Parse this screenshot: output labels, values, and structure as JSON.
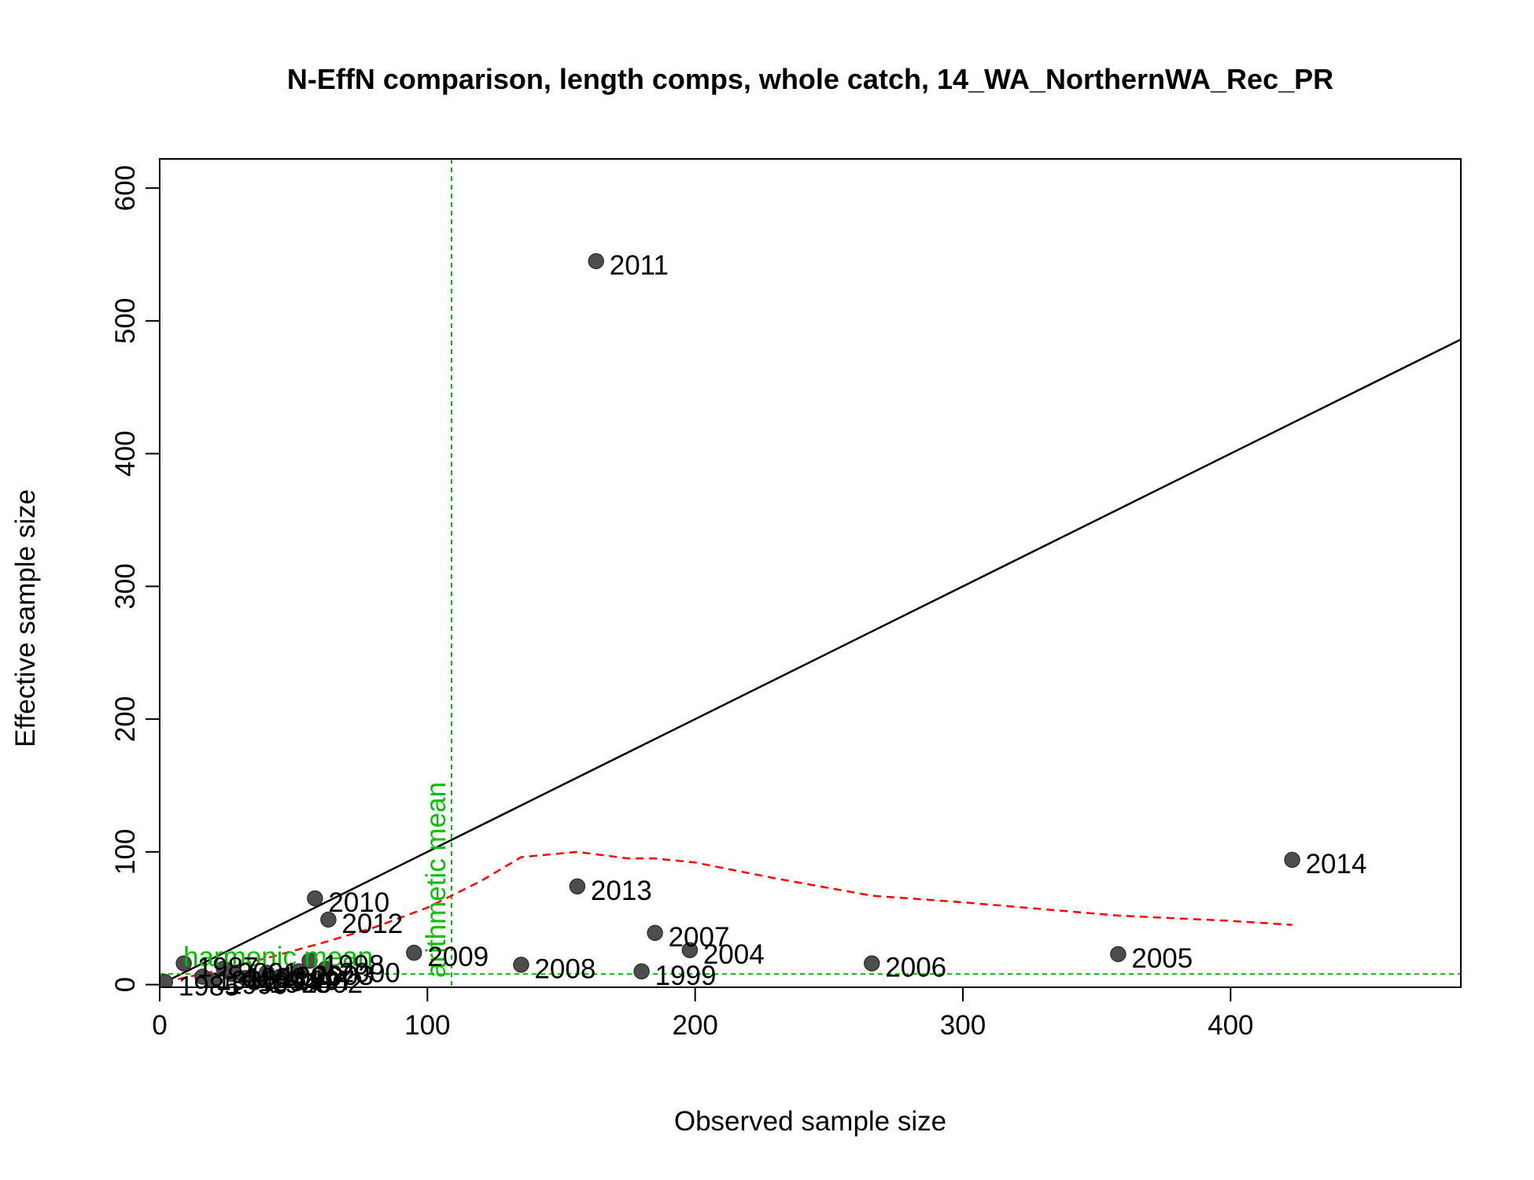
{
  "chart_data": {
    "type": "scatter",
    "title": "N-EffN comparison, length comps, whole catch, 14_WA_NorthernWA_Rec_PR",
    "xlabel": "Observed sample size",
    "ylabel": "Effective sample size",
    "xlim": [
      0,
      486
    ],
    "ylim": [
      -2,
      622
    ],
    "x_ticks": [
      0,
      100,
      200,
      300,
      400
    ],
    "y_ticks": [
      0,
      100,
      200,
      300,
      400,
      500,
      600
    ],
    "grid": false,
    "colors": {
      "points": "#4d4d4d",
      "one_to_one": "#000000",
      "smoother": "#ff0000",
      "means": "#00c000"
    },
    "points": [
      {
        "label": "1985",
        "x": 2,
        "y": 2
      },
      {
        "label": "1986",
        "x": 16,
        "y": 6
      },
      {
        "label": "1987",
        "x": 9,
        "y": 16
      },
      {
        "label": "1990",
        "x": 20,
        "y": 3
      },
      {
        "label": "1993",
        "x": 27,
        "y": 8
      },
      {
        "label": "1994",
        "x": 32,
        "y": 5
      },
      {
        "label": "1995",
        "x": 36,
        "y": 4
      },
      {
        "label": "1996",
        "x": 40,
        "y": 9
      },
      {
        "label": "1997",
        "x": 45,
        "y": 6
      },
      {
        "label": "1998",
        "x": 56,
        "y": 18
      },
      {
        "label": "2000",
        "x": 62,
        "y": 12
      },
      {
        "label": "2001",
        "x": 24,
        "y": 12
      },
      {
        "label": "2002",
        "x": 48,
        "y": 4
      },
      {
        "label": "2003",
        "x": 52,
        "y": 10
      },
      {
        "label": "2009",
        "x": 95,
        "y": 24
      },
      {
        "label": "2010",
        "x": 58,
        "y": 65
      },
      {
        "label": "2012",
        "x": 63,
        "y": 49
      },
      {
        "label": "2008",
        "x": 135,
        "y": 15
      },
      {
        "label": "2013",
        "x": 156,
        "y": 74
      },
      {
        "label": "1999",
        "x": 180,
        "y": 10
      },
      {
        "label": "2007",
        "x": 185,
        "y": 39
      },
      {
        "label": "2004",
        "x": 198,
        "y": 26
      },
      {
        "label": "2011",
        "x": 163,
        "y": 545
      },
      {
        "label": "2006",
        "x": 266,
        "y": 16
      },
      {
        "label": "2005",
        "x": 358,
        "y": 23
      },
      {
        "label": "2014",
        "x": 423,
        "y": 94
      }
    ],
    "one_to_one_line": {
      "x": [
        0,
        486
      ],
      "y": [
        0,
        486
      ]
    },
    "smoother": {
      "x": [
        2,
        20,
        40,
        60,
        80,
        100,
        120,
        135,
        156,
        175,
        185,
        200,
        230,
        266,
        300,
        358,
        400,
        423
      ],
      "y": [
        2,
        10,
        20,
        31,
        43,
        58,
        78,
        96,
        100,
        95,
        95,
        92,
        80,
        67,
        62,
        52,
        48,
        45
      ]
    },
    "arithmetic_mean": {
      "value": 109,
      "label": "arithmetic mean"
    },
    "harmonic_mean": {
      "value": 8,
      "label": "harmonic mean"
    }
  }
}
